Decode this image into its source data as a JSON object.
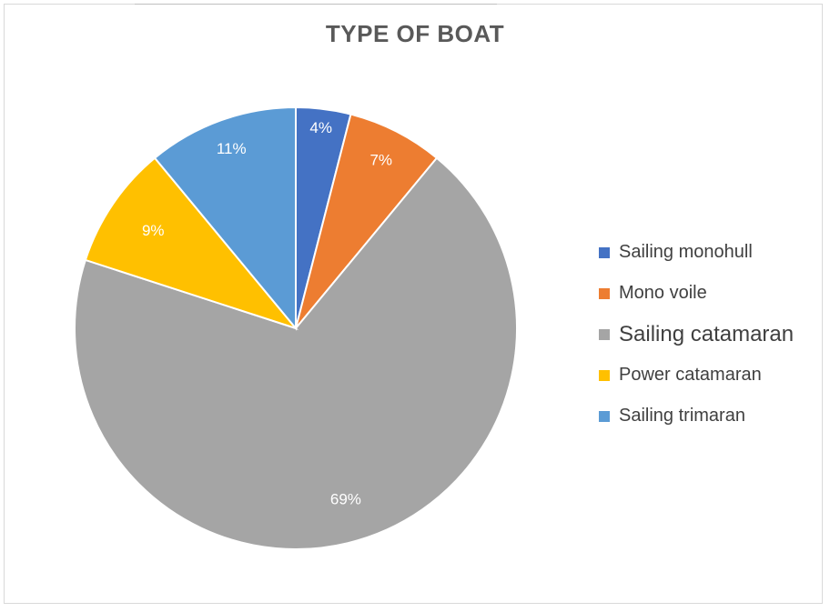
{
  "chart_data": {
    "type": "pie",
    "title": "TYPE OF BOAT",
    "categories": [
      "Sailing monohull",
      "Mono voile",
      "Sailing catamaran",
      "Power catamaran",
      "Sailing trimaran"
    ],
    "values": [
      4,
      7,
      69,
      9,
      11
    ],
    "labels": [
      "4%",
      "7%",
      "69%",
      "9%",
      "11%"
    ],
    "colors": [
      "#4472C4",
      "#ED7D31",
      "#A5A5A5",
      "#FFC000",
      "#5B9BD5"
    ],
    "legend_position": "right"
  }
}
